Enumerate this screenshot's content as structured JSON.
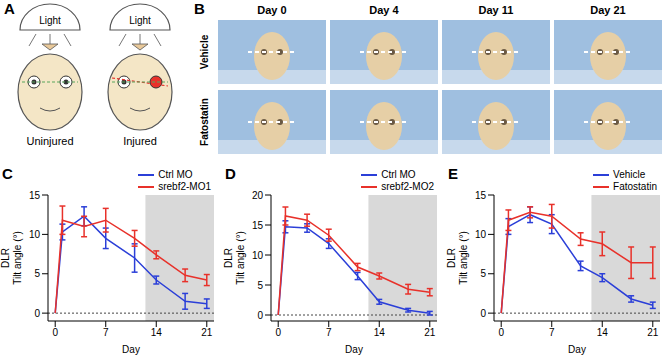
{
  "panel_a": {
    "label": "A",
    "light": "Light",
    "conditions": [
      "Uninjured",
      "Injured"
    ]
  },
  "panel_b": {
    "label": "B",
    "days": [
      "Day 0",
      "Day 4",
      "Day 11",
      "Day 21"
    ],
    "groups": [
      "Vehicle",
      "Fatostatin"
    ]
  },
  "chart_data": [
    {
      "panel_label": "C",
      "type": "line",
      "x_label": "Day",
      "y_label": [
        "DLR",
        "Tilt angle (°)"
      ],
      "x": [
        0,
        1,
        4,
        7,
        11,
        14,
        18,
        21
      ],
      "xlim": [
        -1,
        22
      ],
      "xticks": [
        0,
        7,
        14,
        21
      ],
      "ylim": [
        -1,
        15
      ],
      "yticks": [
        0,
        5,
        10,
        15
      ],
      "legend": "upper right",
      "shaded_x": [
        12.5,
        22
      ],
      "reference_y": 0,
      "series": [
        {
          "name": "Ctrl MO",
          "color": "#2b3fd8",
          "values": [
            0,
            10.3,
            12.3,
            9.5,
            7,
            4.2,
            1.5,
            1.2
          ],
          "errors": [
            0,
            1,
            1.2,
            1.3,
            1.8,
            0.5,
            1,
            0.6
          ]
        },
        {
          "name": "srebf2-MO1",
          "color": "#e8312a",
          "values": [
            0,
            11.8,
            11,
            11.8,
            9.5,
            7.4,
            4.8,
            4.2
          ],
          "errors": [
            0,
            1.8,
            1.3,
            1.5,
            1,
            0.5,
            0.8,
            0.7
          ]
        }
      ]
    },
    {
      "panel_label": "D",
      "type": "line",
      "x_label": "Day",
      "y_label": [
        "DLR",
        "Tilt angle (°)"
      ],
      "x": [
        0,
        1,
        4,
        7,
        11,
        14,
        18,
        21
      ],
      "xlim": [
        -1,
        22
      ],
      "xticks": [
        0,
        7,
        14,
        21
      ],
      "ylim": [
        -1,
        20
      ],
      "yticks": [
        0,
        5,
        10,
        15,
        20
      ],
      "legend": "upper right",
      "shaded_x": [
        12.5,
        22
      ],
      "reference_y": 0,
      "series": [
        {
          "name": "Ctrl MO",
          "color": "#2b3fd8",
          "values": [
            0,
            14.7,
            14.5,
            11.9,
            6.5,
            2.2,
            0.8,
            0.3
          ],
          "errors": [
            0,
            1,
            0.7,
            0.8,
            0.6,
            0.4,
            0.3,
            0.3
          ]
        },
        {
          "name": "srebf2-MO2",
          "color": "#e8312a",
          "values": [
            0,
            16.5,
            15.8,
            13.3,
            8,
            6.5,
            4.3,
            3.8
          ],
          "errors": [
            0,
            1.5,
            1,
            1,
            0.6,
            0.5,
            0.8,
            0.6
          ]
        }
      ]
    },
    {
      "panel_label": "E",
      "type": "line",
      "x_label": "Day",
      "y_label": [
        "DLR",
        "Tilt angle (°)"
      ],
      "x": [
        0,
        1,
        4,
        7,
        11,
        14,
        18,
        21
      ],
      "xlim": [
        -1,
        22
      ],
      "xticks": [
        0,
        7,
        14,
        21
      ],
      "ylim": [
        -1,
        15
      ],
      "yticks": [
        0,
        5,
        10,
        15
      ],
      "legend": "upper right",
      "shaded_x": [
        12.5,
        22
      ],
      "reference_y": 0,
      "series": [
        {
          "name": "Vehicle",
          "color": "#2b3fd8",
          "values": [
            0,
            11,
            12.5,
            11.3,
            6,
            4.5,
            1.8,
            1
          ],
          "errors": [
            0,
            1,
            1,
            1.2,
            0.6,
            0.5,
            0.4,
            0.4
          ]
        },
        {
          "name": "Fatostatin",
          "color": "#e8312a",
          "values": [
            0,
            11.8,
            12.8,
            12.3,
            9.4,
            8.8,
            6.4,
            6.4
          ],
          "errors": [
            0,
            1.3,
            0.7,
            1.5,
            0.8,
            1.5,
            2,
            2
          ]
        }
      ]
    }
  ]
}
